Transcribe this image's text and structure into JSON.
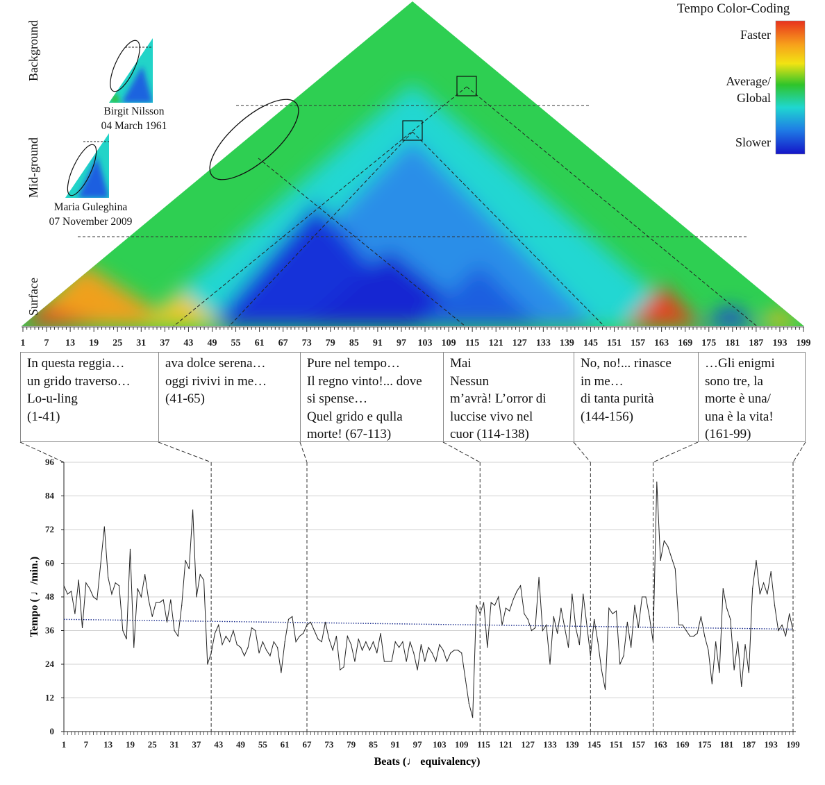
{
  "chart_data": [
    {
      "type": "heatmap",
      "name": "Tempo arch scape plot",
      "layer_labels": [
        "Background",
        "Mid-ground",
        "Surface"
      ],
      "x_tick_labels": [
        "1",
        "7",
        "13",
        "19",
        "25",
        "31",
        "37",
        "43",
        "49",
        "55",
        "61",
        "67",
        "73",
        "79",
        "85",
        "91",
        "97",
        "103",
        "109",
        "115",
        "121",
        "127",
        "133",
        "139",
        "145",
        "151",
        "157",
        "163",
        "169",
        "175",
        "181",
        "187",
        "193",
        "199"
      ],
      "legend": {
        "title": "Tempo Color-Coding",
        "faster": "Faster",
        "average": [
          "Average/",
          "Global"
        ],
        "slower": "Slower",
        "colors": [
          "#e8321d",
          "#f7a21b",
          "#f2e313",
          "#2fc42a",
          "#1fd7d0",
          "#1f7ce5",
          "#1414c8"
        ]
      },
      "insets": [
        {
          "performer": "Birgit Nilsson",
          "date": "04 March 1961"
        },
        {
          "performer": "Maria Guleghina",
          "date": "07 November 2009"
        }
      ],
      "regions_faster": [
        [
          1,
          40
        ],
        [
          158,
          168
        ],
        [
          188,
          199
        ]
      ],
      "regions_slower": [
        [
          43,
          112
        ],
        [
          144,
          157
        ],
        [
          170,
          186
        ]
      ]
    },
    {
      "type": "line",
      "xlabel": "Beats (♩ equivalency)",
      "ylabel": "Tempo ( ♩/min.)",
      "ylim": [
        0,
        96
      ],
      "y_ticks": [
        0,
        12,
        24,
        36,
        48,
        60,
        72,
        84,
        96
      ],
      "xlim": [
        1,
        199
      ],
      "x_tick_labels": [
        "1",
        "7",
        "13",
        "19",
        "25",
        "31",
        "37",
        "43",
        "49",
        "55",
        "61",
        "67",
        "73",
        "79",
        "85",
        "91",
        "97",
        "103",
        "109",
        "115",
        "121",
        "127",
        "133",
        "139",
        "145",
        "151",
        "157",
        "163",
        "169",
        "175",
        "181",
        "187",
        "193",
        "199"
      ],
      "section_boundaries": [
        1,
        41,
        67,
        114,
        144,
        161,
        199
      ],
      "trendline": {
        "start": 40,
        "end": 36.5,
        "color": "#1a2c8c"
      },
      "series": [
        {
          "name": "Tempo",
          "x_start": 1,
          "values": [
            52,
            49,
            50,
            42,
            54,
            37,
            53,
            51,
            48,
            47,
            60,
            73,
            55,
            49,
            53,
            52,
            36,
            33,
            65,
            30,
            51,
            48,
            56,
            47,
            41,
            46,
            46,
            47,
            39,
            47,
            36,
            34,
            45,
            61,
            58,
            79,
            48,
            56,
            54,
            24,
            28,
            35,
            38,
            31,
            34,
            32,
            36,
            31,
            30,
            27,
            30,
            37,
            36,
            28,
            32,
            29,
            27,
            32,
            30,
            21,
            32,
            40,
            41,
            32,
            34,
            35,
            38,
            39,
            36,
            33,
            32,
            39,
            33,
            29,
            34,
            22,
            23,
            34,
            31,
            25,
            33,
            29,
            32,
            29,
            32,
            28,
            35,
            25,
            25,
            25,
            32,
            30,
            32,
            25,
            32,
            28,
            22,
            31,
            25,
            30,
            28,
            25,
            31,
            29,
            25,
            28,
            29,
            29,
            28,
            19,
            10,
            5,
            45,
            42,
            46,
            30,
            46,
            45,
            48,
            38,
            44,
            43,
            47,
            50,
            52,
            42,
            40,
            36,
            37,
            55,
            36,
            38,
            24,
            41,
            35,
            44,
            37,
            30,
            49,
            37,
            31,
            49,
            38,
            27,
            40,
            32,
            22,
            15,
            44,
            42,
            43,
            24,
            27,
            39,
            30,
            45,
            37,
            48,
            48,
            41,
            32,
            89,
            61,
            68,
            66,
            62,
            58,
            38,
            38,
            36,
            34,
            34,
            35,
            41,
            34,
            29,
            17,
            32,
            21,
            51,
            44,
            40,
            22,
            32,
            16,
            31,
            21,
            51,
            61,
            49,
            53,
            49,
            57,
            45,
            36,
            38,
            34,
            42,
            36
          ]
        }
      ]
    }
  ],
  "sections": [
    {
      "lines": [
        "In questa reggia…",
        "un grido traverso…",
        "Lo-u-ling",
        "(1-41)"
      ]
    },
    {
      "lines": [
        "ava dolce serena…",
        "oggi rivivi in me…",
        "(41-65)"
      ]
    },
    {
      "lines": [
        "Pure nel tempo…",
        "Il regno vinto!... dove",
        "si spense…",
        "Quel grido e qulla",
        "morte! (67-113)"
      ]
    },
    {
      "lines": [
        "Mai",
        "Nessun",
        "m’avrà! L’orror di",
        "luccise vivo nel",
        "cuor (114-138)"
      ]
    },
    {
      "lines": [
        "No, no!... rinasce",
        "in me…",
        "di tanta purità",
        "(144-156)"
      ]
    },
    {
      "lines": [
        "…Gli enigmi",
        "sono tre, la",
        "morte è una/",
        "una è la vita!",
        "(161-99)"
      ]
    }
  ]
}
